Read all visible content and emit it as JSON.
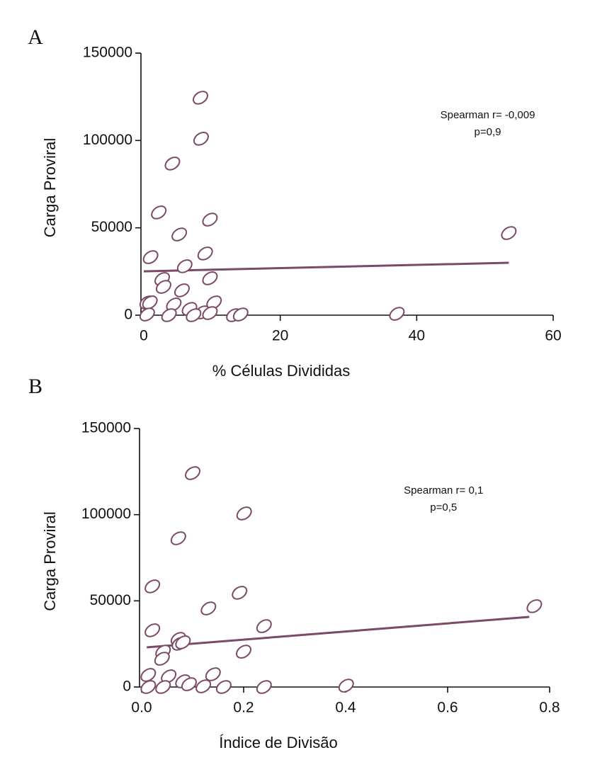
{
  "chart_data": [
    {
      "type": "scatter",
      "label": "A",
      "xlabel": "% Células Divididas",
      "ylabel": "Carga Proviral",
      "annotation": [
        "Spearman r= -0,009",
        "p=0,9"
      ],
      "color": "#7a4a66",
      "x": [
        8.3,
        8.4,
        4.2,
        2.2,
        5.2,
        9.7,
        1.0,
        6.0,
        9.0,
        2.7,
        2.9,
        5.6,
        9.7,
        0.5,
        0.9,
        4.4,
        6.7,
        10.3,
        8.6,
        9.7,
        0.5,
        3.7,
        7.3,
        13.2,
        14.2,
        37.1,
        53.5
      ],
      "y": [
        124500,
        101000,
        86800,
        58800,
        46200,
        54700,
        33200,
        28000,
        35300,
        20700,
        16200,
        14200,
        21100,
        7300,
        7300,
        6100,
        3600,
        7300,
        1600,
        1200,
        400,
        0,
        0,
        0,
        400,
        800,
        47000
      ],
      "trendline": {
        "x": [
          0,
          53.5
        ],
        "y": [
          25100,
          30000
        ]
      },
      "xlim": [
        0,
        60
      ],
      "xticks": [
        0,
        20,
        40,
        60
      ],
      "ylim": [
        0,
        150000
      ],
      "yticks": [
        0,
        50000,
        100000,
        150000
      ]
    },
    {
      "type": "scatter",
      "label": "B",
      "xlabel": "Índice de Divisão",
      "ylabel": "Carga Proviral",
      "annotation": [
        "Spearman r= 0,1",
        "p=0,5"
      ],
      "color": "#7a4a66",
      "x": [
        0.1,
        0.201,
        0.072,
        0.021,
        0.192,
        0.131,
        0.021,
        0.24,
        0.072,
        0.2,
        0.042,
        0.04,
        0.074,
        0.081,
        0.013,
        0.14,
        0.053,
        0.081,
        0.093,
        0.013,
        0.042,
        0.121,
        0.161,
        0.24,
        0.401,
        0.77
      ],
      "y": [
        124100,
        100700,
        86300,
        58400,
        54700,
        45600,
        32900,
        35300,
        27900,
        20500,
        20500,
        16400,
        25100,
        25900,
        7000,
        7400,
        6200,
        3300,
        1600,
        0,
        0,
        400,
        0,
        0,
        800,
        46900
      ],
      "trendline": {
        "x": [
          0.01,
          0.76
        ],
        "y": [
          23000,
          40700
        ]
      },
      "xlim": [
        0,
        0.8
      ],
      "xticks": [
        {
          "value": 0,
          "label": "0.0"
        },
        0.2,
        0.4,
        0.6,
        0.8
      ],
      "ylim": [
        0,
        150000
      ],
      "yticks": [
        0,
        50000,
        100000,
        150000
      ]
    }
  ]
}
